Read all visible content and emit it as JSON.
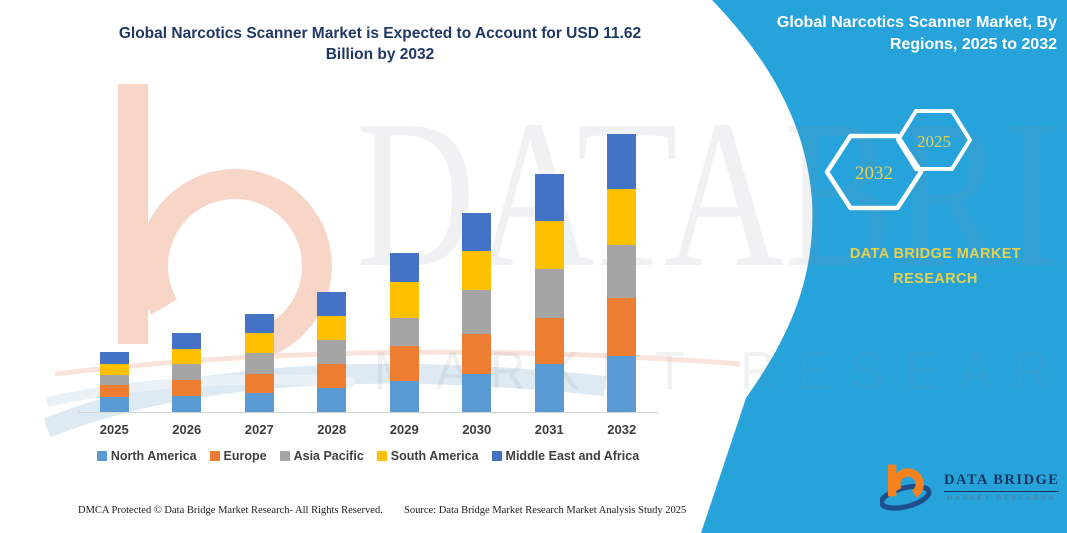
{
  "header": {
    "title_lines": [
      "Global Narcotics Scanner Market is Expected to Account for USD 11.62",
      "Billion by 2032"
    ]
  },
  "side_panel": {
    "bg_color": "#27A3DB",
    "heading_lines": [
      "Global Narcotics Scanner Market, By",
      "Regions, 2025 to 2032"
    ],
    "hexagons": [
      {
        "label": "2032"
      },
      {
        "label": "2025"
      }
    ],
    "caption_lines": [
      "DATA BRIDGE MARKET",
      "RESEARCH"
    ],
    "accent_color": "#E6D14F"
  },
  "logo": {
    "name": "DATA BRIDGE",
    "subtitle": "MARKET RESEARCH"
  },
  "watermark": {
    "text": "DATABRIDGE",
    "subtext": "MARKET RESEARCH"
  },
  "footer": {
    "left": "DMCA Protected © Data Bridge Market Research-  All Rights Reserved.",
    "source": "Source: Data Bridge Market Research  Market Analysis Study 2025"
  },
  "chart_data": {
    "type": "bar",
    "stacked": true,
    "title": "Global Narcotics Scanner Market is Expected to Account for USD 11.62 Billion by 2032",
    "unit": "USD Billion",
    "categories": [
      "2025",
      "2026",
      "2027",
      "2028",
      "2029",
      "2030",
      "2031",
      "2032"
    ],
    "series": [
      {
        "name": "North America",
        "color": "#5B9BD5",
        "values": [
          0.64,
          0.66,
          0.79,
          1.01,
          1.31,
          1.59,
          2.01,
          2.35
        ]
      },
      {
        "name": "Europe",
        "color": "#ED7D31",
        "values": [
          0.5,
          0.7,
          0.81,
          1.0,
          1.44,
          1.68,
          1.92,
          2.4
        ]
      },
      {
        "name": "Asia Pacific",
        "color": "#A5A5A5",
        "values": [
          0.39,
          0.64,
          0.89,
          1.02,
          1.17,
          1.82,
          2.07,
          2.25
        ]
      },
      {
        "name": "South America",
        "color": "#FFC000",
        "values": [
          0.5,
          0.62,
          0.82,
          1.0,
          1.51,
          1.64,
          1.98,
          2.35
        ]
      },
      {
        "name": "Middle East and Africa",
        "color": "#4472C4",
        "values": [
          0.49,
          0.7,
          0.81,
          1.0,
          1.24,
          1.6,
          1.98,
          2.27
        ]
      }
    ],
    "totals_estimated": [
      2.52,
      3.32,
      4.12,
      5.03,
      6.67,
      8.33,
      9.96,
      11.62
    ],
    "ylim": [
      0,
      12
    ],
    "grid": false,
    "value_axis_visible": false,
    "legend_position": "bottom"
  }
}
